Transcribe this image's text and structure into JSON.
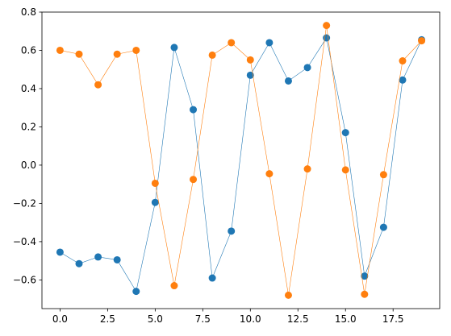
{
  "chart_data": {
    "type": "line",
    "title": "",
    "xlabel": "",
    "ylabel": "",
    "xlim": [
      -0.95,
      19.95
    ],
    "ylim": [
      -0.75,
      0.8
    ],
    "xticks": [
      0,
      2.5,
      5,
      7.5,
      10,
      12.5,
      15,
      17.5
    ],
    "xtick_labels": [
      "0.0",
      "2.5",
      "5.0",
      "7.5",
      "10.0",
      "12.5",
      "15.0",
      "17.5"
    ],
    "yticks": [
      -0.6,
      -0.4,
      -0.2,
      0.0,
      0.2,
      0.4,
      0.6,
      0.8
    ],
    "ytick_labels": [
      "−0.6",
      "−0.4",
      "−0.2",
      "0.0",
      "0.2",
      "0.4",
      "0.6",
      "0.8"
    ],
    "grid": false,
    "legend": false,
    "x": [
      0,
      1,
      2,
      3,
      4,
      5,
      6,
      7,
      8,
      9,
      10,
      11,
      12,
      13,
      14,
      15,
      16,
      17,
      18,
      19
    ],
    "series": [
      {
        "color": "#1f77b4",
        "values": [
          -0.455,
          -0.515,
          -0.48,
          -0.495,
          -0.66,
          -0.195,
          0.615,
          0.29,
          -0.59,
          -0.345,
          0.47,
          0.64,
          0.44,
          0.51,
          0.665,
          0.17,
          -0.58,
          -0.325,
          0.445,
          0.655
        ]
      },
      {
        "color": "#ff7f0e",
        "values": [
          0.6,
          0.58,
          0.42,
          0.58,
          0.6,
          -0.095,
          -0.63,
          -0.075,
          0.575,
          0.64,
          0.55,
          -0.045,
          -0.68,
          -0.02,
          0.73,
          -0.025,
          -0.675,
          -0.05,
          0.545,
          0.65
        ]
      }
    ]
  }
}
